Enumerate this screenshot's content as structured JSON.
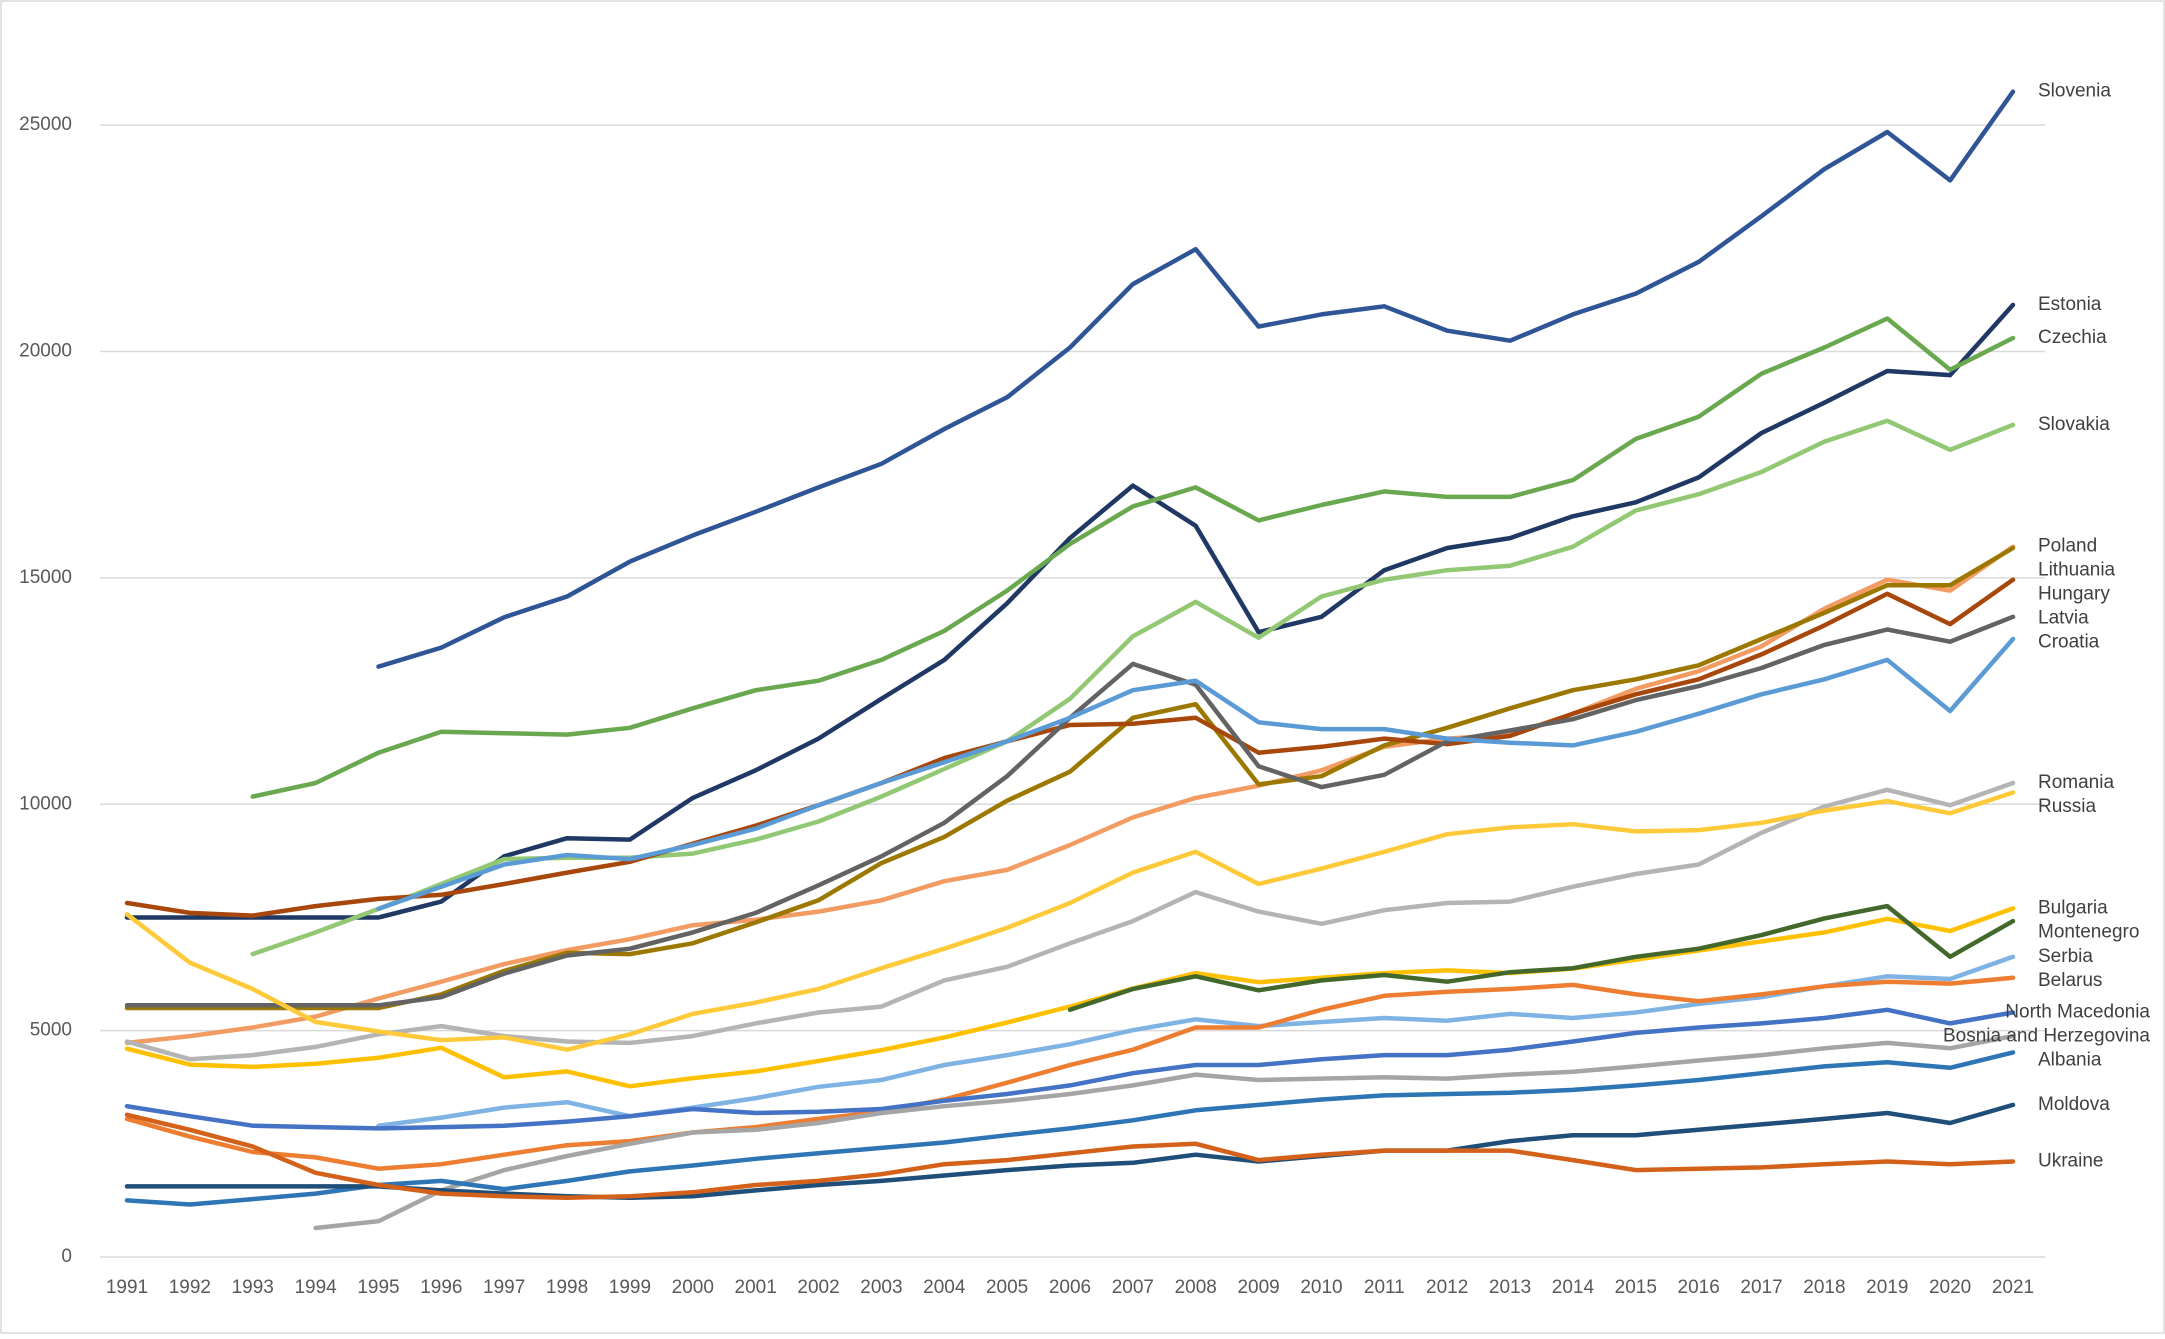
{
  "chart_data": {
    "type": "line",
    "categories": [
      1991,
      1992,
      1993,
      1994,
      1995,
      1996,
      1997,
      1998,
      1999,
      2000,
      2001,
      2002,
      2003,
      2004,
      2005,
      2006,
      2007,
      2008,
      2009,
      2010,
      2011,
      2012,
      2013,
      2014,
      2015,
      2016,
      2017,
      2018,
      2019,
      2020,
      2021
    ],
    "ylim": [
      0,
      27500
    ],
    "yticks": [
      0,
      5000,
      10000,
      15000,
      20000,
      25000
    ],
    "grid": true,
    "series": [
      {
        "name": "Slovenia",
        "color": "#2f5597",
        "values": [
          null,
          null,
          null,
          null,
          13040,
          13460,
          14130,
          14590,
          15360,
          15940,
          16460,
          17000,
          17520,
          18290,
          18990,
          20090,
          21490,
          22260,
          20550,
          20820,
          21000,
          20460,
          20240,
          20820,
          21280,
          21980,
          22990,
          24030,
          24850,
          23780,
          25740
        ]
      },
      {
        "name": "Estonia",
        "color": "#203864",
        "values": [
          7500,
          7500,
          7500,
          7500,
          7500,
          7850,
          8850,
          9250,
          9220,
          10140,
          10750,
          11450,
          12330,
          13190,
          14440,
          15880,
          17040,
          16150,
          13800,
          14140,
          15170,
          15660,
          15880,
          16360,
          16670,
          17220,
          18200,
          18870,
          19570,
          19480,
          21030
        ]
      },
      {
        "name": "Czechia",
        "color": "#6aa84f",
        "values": [
          null,
          null,
          10170,
          10470,
          11140,
          11600,
          11570,
          11540,
          11690,
          12120,
          12520,
          12730,
          13190,
          13830,
          14720,
          15750,
          16580,
          17000,
          16270,
          16610,
          16910,
          16790,
          16790,
          17160,
          18070,
          18560,
          19510,
          20090,
          20730,
          19600,
          20300
        ]
      },
      {
        "name": "Slovakia",
        "color": "#92c873",
        "values": [
          null,
          null,
          6690,
          7170,
          7690,
          8240,
          8790,
          8820,
          8820,
          8910,
          9220,
          9620,
          10170,
          10780,
          11390,
          12330,
          13710,
          14470,
          13680,
          14590,
          14960,
          15170,
          15270,
          15690,
          16490,
          16850,
          17340,
          18010,
          18470,
          17830,
          18380
        ]
      },
      {
        "name": "Poland",
        "color": "#f29b62",
        "values": [
          4730,
          4880,
          5070,
          5310,
          5710,
          6080,
          6470,
          6780,
          7020,
          7330,
          7450,
          7630,
          7880,
          8300,
          8550,
          9100,
          9710,
          10140,
          10410,
          10750,
          11270,
          11450,
          11540,
          12000,
          12550,
          12940,
          13490,
          14320,
          14960,
          14720,
          15690
        ]
      },
      {
        "name": "Lithuania",
        "color": "#9c7800",
        "values": [
          5500,
          5500,
          5500,
          5500,
          5500,
          5800,
          6320,
          6720,
          6690,
          6930,
          7390,
          7880,
          8700,
          9280,
          10080,
          10720,
          11910,
          12210,
          10440,
          10620,
          11300,
          11690,
          12120,
          12520,
          12760,
          13070,
          13650,
          14230,
          14840,
          14840,
          15660
        ]
      },
      {
        "name": "Hungary",
        "color": "#a8470c",
        "values": [
          7820,
          7600,
          7540,
          7750,
          7910,
          8000,
          8240,
          8490,
          8730,
          9130,
          9530,
          9980,
          10470,
          11020,
          11390,
          11750,
          11780,
          11910,
          11140,
          11270,
          11450,
          11330,
          11510,
          12000,
          12430,
          12760,
          13310,
          13950,
          14650,
          13980,
          14960
        ]
      },
      {
        "name": "Latvia",
        "color": "#636363",
        "values": [
          5560,
          5560,
          5560,
          5560,
          5560,
          5740,
          6260,
          6660,
          6810,
          7170,
          7600,
          8210,
          8850,
          9590,
          10620,
          11910,
          13100,
          12640,
          10840,
          10380,
          10650,
          11390,
          11630,
          11880,
          12300,
          12610,
          13010,
          13520,
          13860,
          13590,
          14140
        ]
      },
      {
        "name": "Croatia",
        "color": "#5b9bd5",
        "values": [
          null,
          null,
          null,
          null,
          7690,
          8180,
          8670,
          8880,
          8790,
          9100,
          9460,
          9980,
          10470,
          10930,
          11390,
          11910,
          12520,
          12730,
          11810,
          11660,
          11660,
          11450,
          11360,
          11300,
          11600,
          12000,
          12430,
          12760,
          13190,
          12060,
          13650
        ]
      },
      {
        "name": "Romania",
        "color": "#b4b4b4",
        "values": [
          4760,
          4370,
          4460,
          4640,
          4920,
          5100,
          4880,
          4760,
          4730,
          4880,
          5160,
          5400,
          5530,
          6110,
          6410,
          6930,
          7420,
          8060,
          7630,
          7360,
          7660,
          7820,
          7850,
          8180,
          8460,
          8670,
          9370,
          9950,
          10320,
          9980,
          10470
        ]
      },
      {
        "name": "Russia",
        "color": "#ffca3a",
        "values": [
          7570,
          6500,
          5920,
          5190,
          4980,
          4790,
          4850,
          4580,
          4920,
          5370,
          5620,
          5920,
          6380,
          6810,
          7270,
          7820,
          8490,
          8950,
          8240,
          8580,
          8950,
          9340,
          9490,
          9560,
          9400,
          9430,
          9590,
          9860,
          10070,
          9800,
          10260
        ]
      },
      {
        "name": "Bulgaria",
        "color": "#ffc000",
        "values": [
          4600,
          4250,
          4200,
          4270,
          4400,
          4620,
          3970,
          4100,
          3770,
          3950,
          4100,
          4330,
          4570,
          4850,
          5180,
          5530,
          5930,
          6270,
          6070,
          6170,
          6270,
          6330,
          6270,
          6370,
          6570,
          6770,
          6970,
          7170,
          7470,
          7200,
          7700
        ]
      },
      {
        "name": "Montenegro",
        "color": "#43682b",
        "values": [
          null,
          null,
          null,
          null,
          null,
          null,
          null,
          null,
          null,
          null,
          null,
          null,
          null,
          null,
          null,
          5460,
          5920,
          6200,
          5890,
          6110,
          6230,
          6080,
          6290,
          6380,
          6630,
          6810,
          7110,
          7480,
          7750,
          6630,
          7420
        ]
      },
      {
        "name": "Serbia",
        "color": "#7fb3e3",
        "values": [
          null,
          null,
          null,
          null,
          2900,
          3080,
          3300,
          3420,
          3110,
          3300,
          3510,
          3760,
          3910,
          4240,
          4460,
          4700,
          5010,
          5250,
          5100,
          5190,
          5280,
          5220,
          5370,
          5280,
          5400,
          5590,
          5740,
          5980,
          6200,
          6140,
          6630
        ]
      },
      {
        "name": "Belarus",
        "color": "#ed7d31",
        "values": [
          3050,
          2660,
          2320,
          2200,
          1950,
          2050,
          2260,
          2470,
          2560,
          2750,
          2870,
          3050,
          3210,
          3480,
          3850,
          4240,
          4580,
          5070,
          5070,
          5460,
          5770,
          5860,
          5920,
          6010,
          5800,
          5650,
          5800,
          5980,
          6080,
          6040,
          6170
        ]
      },
      {
        "name": "North Macedonia",
        "color": "#4472c4",
        "values": [
          3330,
          3110,
          2900,
          2870,
          2840,
          2870,
          2900,
          2990,
          3110,
          3270,
          3180,
          3210,
          3270,
          3450,
          3600,
          3790,
          4060,
          4240,
          4240,
          4370,
          4460,
          4460,
          4580,
          4760,
          4950,
          5070,
          5160,
          5280,
          5460,
          5160,
          5400
        ]
      },
      {
        "name": "Bosnia and Herzegovina",
        "color": "#a5a5a5",
        "values": [
          null,
          null,
          null,
          640,
          790,
          1470,
          1920,
          2230,
          2500,
          2750,
          2810,
          2960,
          3180,
          3330,
          3450,
          3600,
          3790,
          4030,
          3910,
          3940,
          3970,
          3940,
          4030,
          4090,
          4210,
          4340,
          4460,
          4610,
          4730,
          4610,
          4880
        ]
      },
      {
        "name": "Albania",
        "color": "#2e75b6",
        "values": [
          1250,
          1160,
          1280,
          1400,
          1590,
          1680,
          1500,
          1680,
          1890,
          2020,
          2170,
          2290,
          2410,
          2530,
          2690,
          2840,
          3020,
          3240,
          3360,
          3480,
          3570,
          3600,
          3630,
          3690,
          3790,
          3910,
          4060,
          4210,
          4300,
          4180,
          4520
        ]
      },
      {
        "name": "Moldova",
        "color": "#1f4e79",
        "values": [
          1560,
          1560,
          1560,
          1560,
          1560,
          1470,
          1400,
          1340,
          1310,
          1340,
          1470,
          1590,
          1680,
          1800,
          1920,
          2020,
          2080,
          2260,
          2110,
          2230,
          2350,
          2350,
          2560,
          2690,
          2690,
          2810,
          2930,
          3050,
          3180,
          2960,
          3360
        ]
      },
      {
        "name": "Ukraine",
        "color": "#d4611a",
        "values": [
          3140,
          2810,
          2440,
          1860,
          1590,
          1400,
          1340,
          1310,
          1340,
          1430,
          1590,
          1680,
          1830,
          2050,
          2140,
          2290,
          2440,
          2500,
          2140,
          2260,
          2350,
          2350,
          2350,
          2140,
          1920,
          1950,
          1980,
          2050,
          2110,
          2050,
          2110
        ]
      }
    ]
  }
}
